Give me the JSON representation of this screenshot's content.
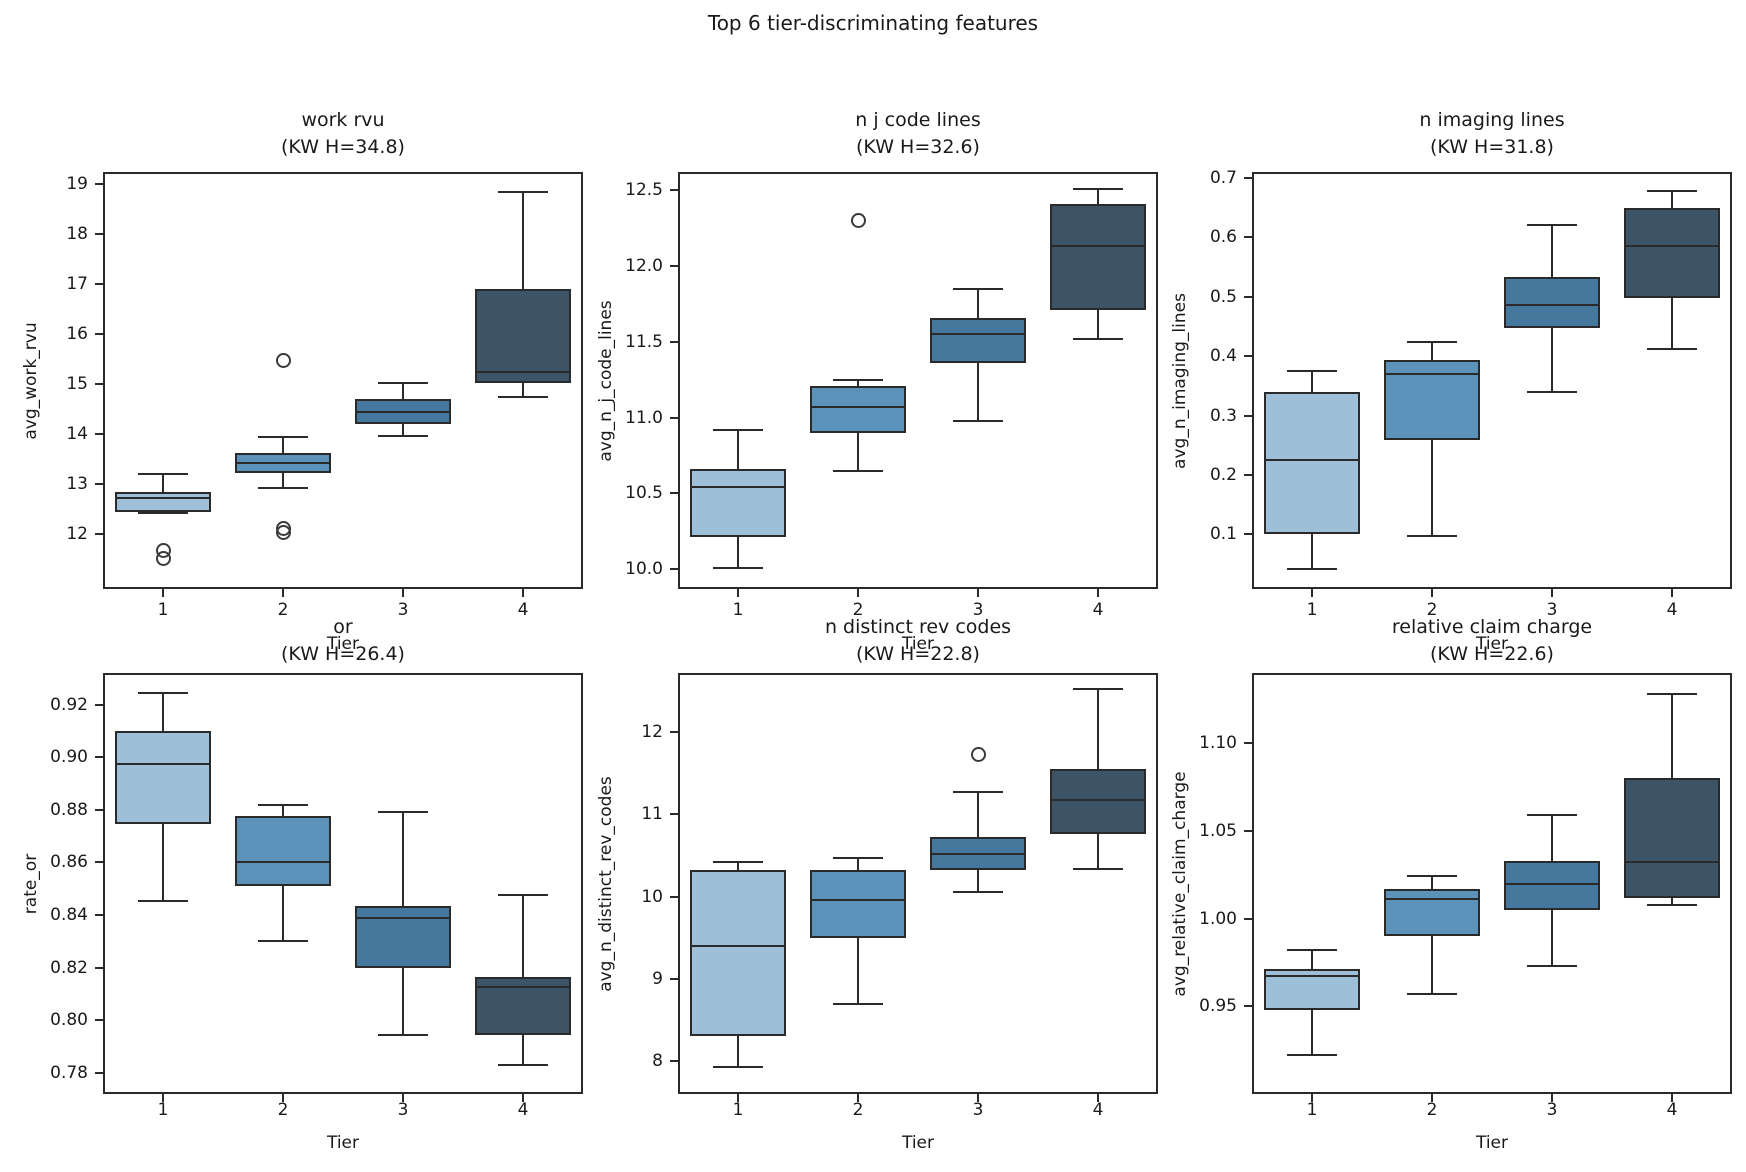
{
  "figure": {
    "title": "Top 6 tier-discriminating features",
    "xlabel": "Tier",
    "categories": [
      "1",
      "2",
      "3",
      "4"
    ],
    "palette": [
      "#9dc0d8",
      "#5b92ba",
      "#45789c",
      "#3d5466"
    ],
    "edge_color": "#2a2a2a",
    "background": "#ffffff"
  },
  "chart_data": [
    {
      "type": "box",
      "title": "work rvu",
      "subtitle": "(KW H=34.8)",
      "ylabel": "avg_work_rvu",
      "xlabel": "Tier",
      "categories": [
        "1",
        "2",
        "3",
        "4"
      ],
      "ylim": [
        10.9,
        19.25
      ],
      "yticks": [
        12,
        13,
        14,
        15,
        16,
        17,
        18,
        19
      ],
      "ytick_labels": [
        "12",
        "13",
        "14",
        "15",
        "16",
        "17",
        "18",
        "19"
      ],
      "boxes": [
        {
          "tier": "1",
          "whislo": 12.43,
          "q1": 12.45,
          "med": 12.72,
          "q3": 12.85,
          "whishi": 13.2,
          "fliers": [
            11.68,
            11.52
          ]
        },
        {
          "tier": "2",
          "whislo": 12.93,
          "q1": 13.22,
          "med": 13.42,
          "q3": 13.63,
          "whishi": 13.95,
          "fliers": [
            15.48,
            12.12,
            12.03
          ]
        },
        {
          "tier": "3",
          "whislo": 13.97,
          "q1": 14.2,
          "med": 14.45,
          "q3": 14.7,
          "whishi": 15.02,
          "fliers": []
        },
        {
          "tier": "4",
          "whislo": 14.75,
          "q1": 15.02,
          "med": 15.25,
          "q3": 16.9,
          "whishi": 18.85,
          "fliers": []
        }
      ]
    },
    {
      "type": "box",
      "title": "n j code lines",
      "subtitle": "(KW H=32.6)",
      "ylabel": "avg_n_j_code_lines",
      "xlabel": "Tier",
      "categories": [
        "1",
        "2",
        "3",
        "4"
      ],
      "ylim": [
        9.87,
        12.62
      ],
      "yticks": [
        10.0,
        10.5,
        11.0,
        11.5,
        12.0,
        12.5
      ],
      "ytick_labels": [
        "10.0",
        "10.5",
        "11.0",
        "11.5",
        "12.0",
        "12.5"
      ],
      "boxes": [
        {
          "tier": "1",
          "whislo": 10.01,
          "q1": 10.21,
          "med": 10.54,
          "q3": 10.66,
          "whishi": 10.92,
          "fliers": []
        },
        {
          "tier": "2",
          "whislo": 10.65,
          "q1": 10.9,
          "med": 11.07,
          "q3": 11.21,
          "whishi": 11.25,
          "fliers": [
            12.3
          ]
        },
        {
          "tier": "3",
          "whislo": 10.98,
          "q1": 11.36,
          "med": 11.55,
          "q3": 11.66,
          "whishi": 11.85,
          "fliers": []
        },
        {
          "tier": "4",
          "whislo": 11.52,
          "q1": 11.71,
          "med": 12.13,
          "q3": 12.41,
          "whishi": 12.51,
          "fliers": []
        }
      ]
    },
    {
      "type": "box",
      "title": "n imaging lines",
      "subtitle": "(KW H=31.8)",
      "ylabel": "avg_n_imaging_lines",
      "xlabel": "Tier",
      "categories": [
        "1",
        "2",
        "3",
        "4"
      ],
      "ylim": [
        0.008,
        0.71
      ],
      "yticks": [
        0.1,
        0.2,
        0.3,
        0.4,
        0.5,
        0.6,
        0.7
      ],
      "ytick_labels": [
        "0.1",
        "0.2",
        "0.3",
        "0.4",
        "0.5",
        "0.6",
        "0.7"
      ],
      "boxes": [
        {
          "tier": "1",
          "whislo": 0.042,
          "q1": 0.1,
          "med": 0.225,
          "q3": 0.34,
          "whishi": 0.375,
          "fliers": []
        },
        {
          "tier": "2",
          "whislo": 0.097,
          "q1": 0.258,
          "med": 0.37,
          "q3": 0.394,
          "whishi": 0.424,
          "fliers": []
        },
        {
          "tier": "3",
          "whislo": 0.34,
          "q1": 0.448,
          "med": 0.486,
          "q3": 0.534,
          "whishi": 0.62,
          "fliers": []
        },
        {
          "tier": "4",
          "whislo": 0.412,
          "q1": 0.498,
          "med": 0.586,
          "q3": 0.65,
          "whishi": 0.678,
          "fliers": []
        }
      ]
    },
    {
      "type": "box",
      "title": "or",
      "subtitle": "(KW H=26.4)",
      "ylabel": "rate_or",
      "xlabel": "Tier",
      "categories": [
        "1",
        "2",
        "3",
        "4"
      ],
      "ylim": [
        0.772,
        0.932
      ],
      "yticks": [
        0.78,
        0.8,
        0.82,
        0.84,
        0.86,
        0.88,
        0.9,
        0.92
      ],
      "ytick_labels": [
        "0.78",
        "0.80",
        "0.82",
        "0.84",
        "0.86",
        "0.88",
        "0.90",
        "0.92"
      ],
      "boxes": [
        {
          "tier": "1",
          "whislo": 0.8455,
          "q1": 0.8745,
          "med": 0.8975,
          "q3": 0.91,
          "whishi": 0.9245,
          "fliers": []
        },
        {
          "tier": "2",
          "whislo": 0.83,
          "q1": 0.851,
          "med": 0.86,
          "q3": 0.8775,
          "whishi": 0.882,
          "fliers": []
        },
        {
          "tier": "3",
          "whislo": 0.7945,
          "q1": 0.82,
          "med": 0.839,
          "q3": 0.8435,
          "whishi": 0.879,
          "fliers": []
        },
        {
          "tier": "4",
          "whislo": 0.783,
          "q1": 0.7945,
          "med": 0.8125,
          "q3": 0.8165,
          "whishi": 0.8475,
          "fliers": []
        }
      ]
    },
    {
      "type": "box",
      "title": "n distinct rev codes",
      "subtitle": "(KW H=22.8)",
      "ylabel": "avg_n_distinct_rev_codes",
      "xlabel": "Tier",
      "categories": [
        "1",
        "2",
        "3",
        "4"
      ],
      "ylim": [
        7.6,
        12.72
      ],
      "yticks": [
        8,
        9,
        10,
        11,
        12
      ],
      "ytick_labels": [
        "8",
        "9",
        "10",
        "11",
        "12"
      ],
      "boxes": [
        {
          "tier": "1",
          "whislo": 7.93,
          "q1": 8.3,
          "med": 9.4,
          "q3": 10.32,
          "whishi": 10.42,
          "fliers": []
        },
        {
          "tier": "2",
          "whislo": 8.7,
          "q1": 9.5,
          "med": 9.96,
          "q3": 10.33,
          "whishi": 10.47,
          "fliers": []
        },
        {
          "tier": "3",
          "whislo": 10.06,
          "q1": 10.32,
          "med": 10.52,
          "q3": 10.73,
          "whishi": 11.27,
          "fliers": [
            11.73
          ]
        },
        {
          "tier": "4",
          "whislo": 10.34,
          "q1": 10.76,
          "med": 11.18,
          "q3": 11.55,
          "whishi": 12.52,
          "fliers": []
        }
      ]
    },
    {
      "type": "box",
      "title": "relative claim charge",
      "subtitle": "(KW H=22.6)",
      "ylabel": "avg_relative_claim_charge",
      "xlabel": "Tier",
      "categories": [
        "1",
        "2",
        "3",
        "4"
      ],
      "ylim": [
        0.9,
        1.14
      ],
      "yticks": [
        0.95,
        1.0,
        1.05,
        1.1
      ],
      "ytick_labels": [
        "0.95",
        "1.00",
        "1.05",
        "1.10"
      ],
      "boxes": [
        {
          "tier": "1",
          "whislo": 0.922,
          "q1": 0.948,
          "med": 0.967,
          "q3": 0.971,
          "whishi": 0.982,
          "fliers": []
        },
        {
          "tier": "2",
          "whislo": 0.957,
          "q1": 0.99,
          "med": 1.011,
          "q3": 1.017,
          "whishi": 1.024,
          "fliers": []
        },
        {
          "tier": "3",
          "whislo": 0.973,
          "q1": 1.005,
          "med": 1.02,
          "q3": 1.033,
          "whishi": 1.059,
          "fliers": []
        },
        {
          "tier": "4",
          "whislo": 1.008,
          "q1": 1.012,
          "med": 1.032,
          "q3": 1.08,
          "whishi": 1.128,
          "fliers": []
        }
      ]
    }
  ]
}
